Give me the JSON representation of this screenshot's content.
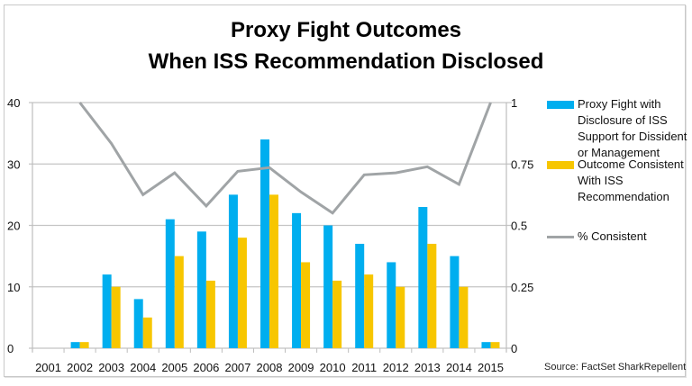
{
  "chart_data": {
    "type": "bar",
    "title": "Proxy Fight Outcomes When ISS Recommendation Disclosed",
    "title_lines": [
      "Proxy Fight Outcomes",
      "When ISS Recommendation Disclosed"
    ],
    "categories": [
      "2001",
      "2002",
      "2003",
      "2004",
      "2005",
      "2006",
      "2007",
      "2008",
      "2009",
      "2010",
      "2011",
      "2012",
      "2013",
      "2014",
      "2015"
    ],
    "series": [
      {
        "name": "Proxy Fight with Disclosure of ISS Support for Dissident or Management",
        "type": "bar",
        "axis": "left",
        "color": "#00aeef",
        "values": [
          0,
          1,
          12,
          8,
          21,
          19,
          25,
          34,
          22,
          20,
          17,
          14,
          23,
          15,
          1
        ]
      },
      {
        "name": "Outcome Consistent With ISS Recommendation",
        "type": "bar",
        "axis": "left",
        "color": "#f7c600",
        "values": [
          0,
          1,
          10,
          5,
          15,
          11,
          18,
          25,
          14,
          11,
          12,
          10,
          17,
          10,
          1
        ]
      },
      {
        "name": "% Consistent",
        "type": "line",
        "axis": "right",
        "color": "#a0a4a6",
        "values": [
          null,
          1.0,
          0.833,
          0.625,
          0.714,
          0.579,
          0.72,
          0.735,
          0.636,
          0.55,
          0.706,
          0.714,
          0.739,
          0.667,
          1.0
        ]
      }
    ],
    "left_axis": {
      "ylim": [
        0,
        40
      ],
      "ticks": [
        "0",
        "10",
        "20",
        "30",
        "40"
      ]
    },
    "right_axis": {
      "ylim": [
        0,
        1
      ],
      "ticks": [
        "0",
        "0.25",
        "0.5",
        "0.75",
        "1"
      ]
    },
    "xlabel": "",
    "ylabel": "",
    "grid": true,
    "legend_position": "right",
    "annotation": "Source: FactSet SharkRepellent"
  },
  "legend": {
    "item1": "Proxy Fight with Disclosure of ISS Support for Dissident or Management",
    "item2": "Outcome Consistent With ISS Recommendation",
    "item3": "% Consistent"
  },
  "source": "Source: FactSet SharkRepellent"
}
